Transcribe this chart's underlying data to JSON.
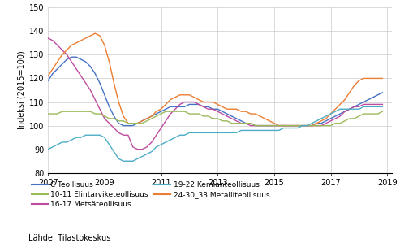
{
  "ylabel": "Indeksi (2015=100)",
  "source": "Lähde: Tilastokeskus",
  "xlim": [
    2007.0,
    2019.17
  ],
  "ylim": [
    80,
    150
  ],
  "yticks": [
    80,
    90,
    100,
    110,
    120,
    130,
    140,
    150
  ],
  "xticks": [
    2007,
    2009,
    2011,
    2013,
    2015,
    2017,
    2019
  ],
  "series": {
    "C Teollisuus": {
      "color": "#4472C4",
      "data": [
        119,
        122,
        124,
        126,
        128,
        129,
        129,
        128,
        127,
        125,
        122,
        118,
        113,
        108,
        104,
        101,
        100,
        100,
        100,
        101,
        102,
        103,
        104,
        105,
        106,
        107,
        108,
        108,
        108,
        108,
        109,
        109,
        109,
        108,
        108,
        107,
        107,
        106,
        105,
        104,
        103,
        102,
        101,
        101,
        100,
        100,
        100,
        100,
        100,
        100,
        100,
        100,
        100,
        100,
        100,
        100,
        100,
        101,
        101,
        102,
        103,
        104,
        105,
        106,
        107,
        108,
        109,
        110,
        111,
        112,
        113,
        114
      ]
    },
    "16-17 Metsäteollisuus": {
      "color": "#BE4B9E",
      "data": [
        137,
        136,
        134,
        132,
        130,
        127,
        124,
        121,
        118,
        115,
        111,
        107,
        103,
        101,
        99,
        97,
        96,
        96,
        91,
        90,
        90,
        91,
        93,
        96,
        99,
        102,
        105,
        107,
        109,
        110,
        110,
        110,
        109,
        108,
        107,
        107,
        106,
        105,
        104,
        103,
        102,
        101,
        101,
        100,
        100,
        100,
        100,
        100,
        100,
        100,
        100,
        100,
        100,
        100,
        100,
        100,
        100,
        100,
        100,
        101,
        102,
        103,
        104,
        106,
        107,
        108,
        108,
        109,
        109,
        109,
        109,
        109
      ]
    },
    "24-30_33 Metalliteollisuus": {
      "color": "#ED7D31",
      "data": [
        121,
        124,
        127,
        130,
        132,
        134,
        135,
        136,
        137,
        138,
        139,
        138,
        134,
        127,
        118,
        110,
        104,
        101,
        101,
        101,
        102,
        103,
        104,
        106,
        107,
        109,
        111,
        112,
        113,
        113,
        113,
        112,
        111,
        110,
        110,
        110,
        109,
        108,
        107,
        107,
        107,
        106,
        106,
        105,
        105,
        104,
        103,
        102,
        101,
        100,
        100,
        100,
        100,
        100,
        100,
        100,
        100,
        101,
        102,
        103,
        105,
        107,
        109,
        111,
        114,
        117,
        119,
        120,
        120,
        120,
        120,
        120
      ]
    },
    "10-11 Elintarviketeollisuus": {
      "color": "#9BBB59",
      "data": [
        105,
        105,
        105,
        106,
        106,
        106,
        106,
        106,
        106,
        106,
        105,
        105,
        104,
        103,
        103,
        102,
        102,
        101,
        101,
        101,
        101,
        102,
        103,
        104,
        105,
        106,
        106,
        106,
        106,
        106,
        105,
        105,
        105,
        104,
        104,
        103,
        103,
        102,
        102,
        101,
        101,
        101,
        101,
        101,
        100,
        100,
        100,
        100,
        100,
        100,
        100,
        100,
        100,
        100,
        100,
        100,
        100,
        100,
        100,
        100,
        100,
        101,
        101,
        102,
        103,
        103,
        104,
        105,
        105,
        105,
        105,
        106
      ]
    },
    "19-22 Kemianteollisuus": {
      "color": "#4BACC6",
      "data": [
        90,
        91,
        92,
        93,
        93,
        94,
        95,
        95,
        96,
        96,
        96,
        96,
        95,
        92,
        89,
        86,
        85,
        85,
        85,
        86,
        87,
        88,
        89,
        91,
        92,
        93,
        94,
        95,
        96,
        96,
        97,
        97,
        97,
        97,
        97,
        97,
        97,
        97,
        97,
        97,
        97,
        98,
        98,
        98,
        98,
        98,
        98,
        98,
        98,
        98,
        99,
        99,
        99,
        99,
        100,
        100,
        101,
        102,
        103,
        104,
        105,
        106,
        107,
        107,
        107,
        107,
        107,
        108,
        108,
        108,
        108,
        108
      ]
    }
  }
}
